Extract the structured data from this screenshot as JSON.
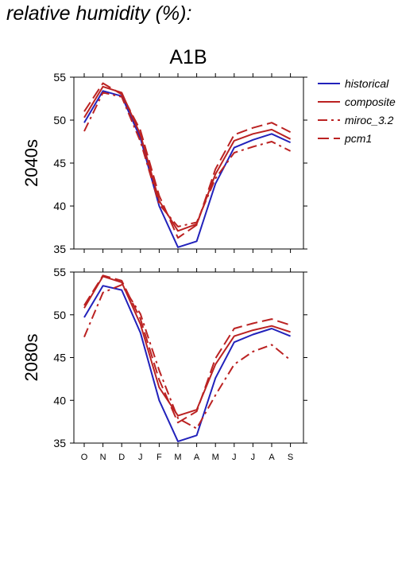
{
  "page": {
    "title": "relative humidity (%):"
  },
  "chart_data": {
    "type": "line",
    "scenario": "A1B",
    "categories": [
      "O",
      "N",
      "D",
      "J",
      "F",
      "M",
      "A",
      "M",
      "J",
      "J",
      "A",
      "S"
    ],
    "ylim": [
      35,
      55
    ],
    "yticks": [
      35,
      40,
      45,
      50,
      55
    ],
    "legend_position": "right",
    "series_styles": [
      {
        "name": "historical",
        "color": "#2222bb",
        "dash": ""
      },
      {
        "name": "composite",
        "color": "#bb2222",
        "dash": ""
      },
      {
        "name": "miroc_3.2",
        "color": "#bb2222",
        "dash": "12 5 3 5"
      },
      {
        "name": "pcm1",
        "color": "#bb2222",
        "dash": "14 6"
      }
    ],
    "panels": [
      {
        "ylabel": "2040s",
        "series": [
          {
            "name": "historical",
            "values": [
              49.7,
              53.4,
              52.8,
              47.9,
              40.0,
              35.2,
              35.9,
              42.6,
              46.8,
              47.7,
              48.4,
              47.4
            ]
          },
          {
            "name": "composite",
            "values": [
              50.3,
              53.9,
              53.2,
              48.3,
              40.6,
              37.1,
              37.9,
              43.7,
              47.6,
              48.4,
              48.9,
              47.8
            ]
          },
          {
            "name": "miroc_3.2",
            "values": [
              48.7,
              53.2,
              52.7,
              47.5,
              40.2,
              37.6,
              38.1,
              43.2,
              46.2,
              46.9,
              47.5,
              46.4
            ]
          },
          {
            "name": "pcm1",
            "values": [
              51.0,
              54.3,
              53.0,
              48.8,
              41.2,
              36.3,
              37.8,
              44.3,
              48.3,
              49.1,
              49.7,
              48.6
            ]
          }
        ]
      },
      {
        "ylabel": "2080s",
        "series": [
          {
            "name": "historical",
            "values": [
              49.7,
              53.4,
              52.9,
              47.9,
              40.0,
              35.2,
              35.9,
              42.6,
              46.8,
              47.7,
              48.4,
              47.5
            ]
          },
          {
            "name": "composite",
            "values": [
              50.8,
              54.5,
              53.8,
              48.9,
              41.5,
              38.2,
              38.9,
              44.2,
              47.5,
              48.2,
              48.7,
              48.0
            ]
          },
          {
            "name": "miroc_3.2",
            "values": [
              47.4,
              52.6,
              53.5,
              50.1,
              43.5,
              37.9,
              36.7,
              40.6,
              44.2,
              45.7,
              46.5,
              44.7
            ]
          },
          {
            "name": "pcm1",
            "values": [
              51.1,
              54.6,
              54.0,
              49.5,
              42.4,
              37.4,
              38.7,
              44.9,
              48.4,
              49.0,
              49.5,
              48.8
            ]
          }
        ]
      }
    ]
  }
}
